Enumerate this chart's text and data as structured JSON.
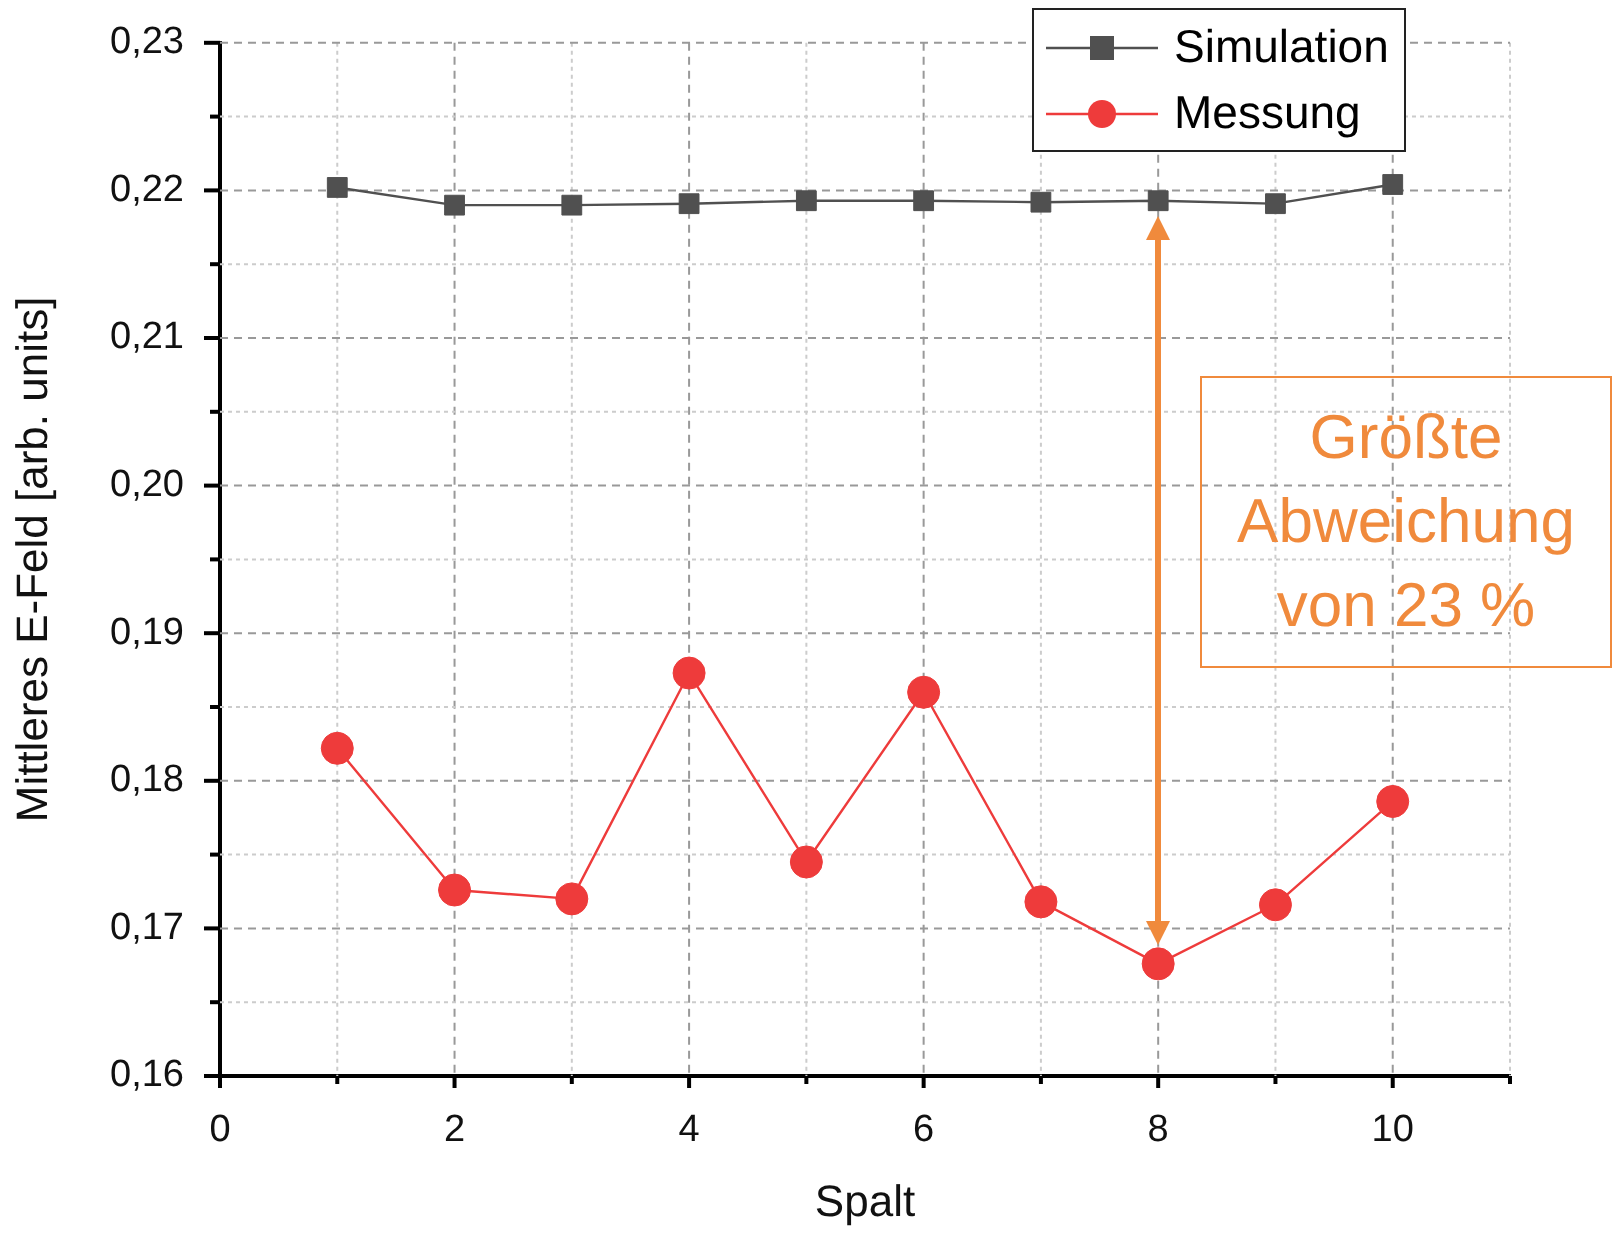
{
  "chart_data": {
    "type": "line",
    "xlabel": "Spalt",
    "ylabel": "Mittleres E-Feld [arb. units]",
    "x": [
      1,
      2,
      3,
      4,
      5,
      6,
      7,
      8,
      9,
      10
    ],
    "series": [
      {
        "name": "Simulation",
        "color": "#505050",
        "marker": "square",
        "values": [
          0.2202,
          0.219,
          0.219,
          0.2191,
          0.2193,
          0.2193,
          0.2192,
          0.2193,
          0.2191,
          0.2204
        ]
      },
      {
        "name": "Messung",
        "color": "#ee3b3b",
        "marker": "circle",
        "values": [
          0.1822,
          0.1726,
          0.172,
          0.1873,
          0.1745,
          0.186,
          0.1718,
          0.1676,
          0.1716,
          0.1786
        ]
      }
    ],
    "xlim": [
      0,
      11
    ],
    "xticks": [
      0,
      {
        "value": 1,
        "label": null
      },
      2,
      {
        "value": 3,
        "label": null
      },
      4,
      {
        "value": 5,
        "label": null
      },
      6,
      {
        "value": 7,
        "label": null
      },
      8,
      {
        "value": 9,
        "label": null
      },
      10,
      {
        "value": 11,
        "label": null
      }
    ],
    "ylim": [
      0.16,
      0.23
    ],
    "yticks": [
      {
        "value": 0.16,
        "label": "0,16"
      },
      {
        "value": 0.165,
        "label": null
      },
      {
        "value": 0.17,
        "label": "0,17"
      },
      {
        "value": 0.175,
        "label": null
      },
      {
        "value": 0.18,
        "label": "0,18"
      },
      {
        "value": 0.185,
        "label": null
      },
      {
        "value": 0.19,
        "label": "0,19"
      },
      {
        "value": 0.195,
        "label": null
      },
      {
        "value": 0.2,
        "label": "0,20"
      },
      {
        "value": 0.205,
        "label": null
      },
      {
        "value": 0.21,
        "label": "0,21"
      },
      {
        "value": 0.215,
        "label": null
      },
      {
        "value": 0.22,
        "label": "0,22"
      },
      {
        "value": 0.225,
        "label": null
      },
      {
        "value": 0.23,
        "label": "0,23"
      }
    ],
    "grid": true,
    "legend": "top right",
    "annotations": [
      "Größte Abweichung von 23 %"
    ]
  }
}
